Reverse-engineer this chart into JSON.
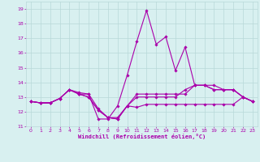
{
  "xlabel": "Windchill (Refroidissement éolien,°C)",
  "background_color": "#d8f0f0",
  "grid_color": "#b8d8d8",
  "line_color": "#aa00aa",
  "markersize": 1.8,
  "linewidth": 0.8,
  "ylim": [
    11,
    19.5
  ],
  "yticks": [
    11,
    12,
    13,
    14,
    15,
    16,
    17,
    18,
    19
  ],
  "xlim": [
    -0.5,
    23.5
  ],
  "xticks": [
    0,
    1,
    2,
    3,
    4,
    5,
    6,
    7,
    8,
    9,
    10,
    11,
    12,
    13,
    14,
    15,
    16,
    17,
    18,
    19,
    20,
    21,
    22,
    23
  ],
  "series": [
    [
      12.7,
      12.6,
      12.6,
      12.9,
      13.5,
      13.3,
      13.2,
      12.2,
      11.6,
      11.6,
      12.4,
      12.3,
      12.5,
      12.5,
      12.5,
      12.5,
      12.5,
      12.5,
      12.5,
      12.5,
      12.5,
      12.5,
      13.0,
      12.7
    ],
    [
      12.7,
      12.6,
      12.6,
      12.9,
      13.5,
      13.2,
      13.2,
      11.5,
      11.5,
      12.4,
      14.5,
      16.8,
      18.9,
      16.6,
      17.1,
      14.8,
      16.4,
      13.8,
      13.8,
      13.8,
      13.5,
      13.5,
      13.0,
      12.7
    ],
    [
      12.7,
      12.6,
      12.6,
      12.9,
      13.5,
      13.2,
      13.0,
      12.1,
      11.6,
      11.5,
      12.4,
      13.2,
      13.2,
      13.2,
      13.2,
      13.2,
      13.2,
      13.8,
      13.8,
      13.5,
      13.5,
      13.5,
      13.0,
      12.7
    ],
    [
      12.7,
      12.6,
      12.6,
      12.9,
      13.5,
      13.2,
      13.0,
      12.1,
      11.6,
      11.5,
      12.4,
      13.0,
      13.0,
      13.0,
      13.0,
      13.0,
      13.5,
      13.8,
      13.8,
      13.5,
      13.5,
      13.5,
      13.0,
      12.7
    ]
  ]
}
